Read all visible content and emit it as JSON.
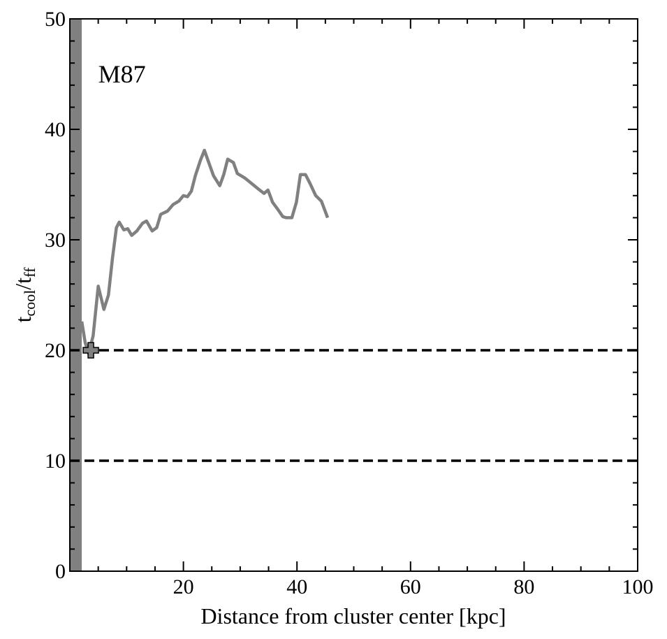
{
  "chart_data": {
    "type": "line",
    "annotation": "M87",
    "annotation_at": [
      5,
      45
    ],
    "xlabel": "Distance from cluster center [kpc]",
    "ylabel_parts": [
      "t",
      "cool",
      "/t",
      "ff"
    ],
    "xlim": [
      0,
      100
    ],
    "ylim": [
      0,
      50
    ],
    "xticks": [
      20,
      40,
      60,
      80,
      100
    ],
    "yticks": [
      0,
      10,
      20,
      30,
      40,
      50
    ],
    "xminorticks": [
      5,
      10,
      15,
      25,
      30,
      35,
      45,
      50,
      55,
      65,
      70,
      75,
      85,
      90,
      95
    ],
    "yminorticks": [
      2,
      4,
      6,
      8,
      12,
      14,
      16,
      18,
      22,
      24,
      26,
      28,
      32,
      34,
      36,
      38,
      42,
      44,
      46,
      48
    ],
    "hlines": [
      20,
      10
    ],
    "shade_x": [
      0,
      2.1
    ],
    "shade_color": "#808080",
    "marker": {
      "x": 3.7,
      "y": 20
    },
    "series": [
      {
        "color": "#808080",
        "x": [
          2.1,
          2.7,
          3.3,
          4.1,
          5.0,
          6.0,
          6.8,
          7.5,
          8.2,
          8.7,
          9.5,
          10.2,
          10.9,
          11.8,
          12.8,
          13.5,
          14.5,
          15.3,
          16.0,
          17.2,
          18.2,
          19.2,
          20.0,
          20.7,
          21.4,
          22.1,
          23.0,
          23.7,
          24.6,
          25.3,
          26.4,
          27.1,
          27.8,
          28.8,
          29.5,
          30.8,
          32.0,
          33.2,
          34.2,
          34.9,
          35.7,
          36.7,
          37.5,
          38.1,
          39.1,
          39.9,
          40.6,
          41.5,
          42.3,
          43.3,
          44.3,
          45.4
        ],
        "values": [
          22.6,
          20.7,
          19.7,
          21.3,
          25.8,
          23.7,
          25.0,
          28.3,
          31.1,
          31.6,
          30.9,
          31.0,
          30.4,
          30.8,
          31.5,
          31.7,
          30.8,
          31.1,
          32.3,
          32.6,
          33.2,
          33.5,
          34.0,
          33.9,
          34.4,
          35.8,
          37.2,
          38.1,
          36.8,
          35.8,
          34.9,
          35.9,
          37.3,
          37.0,
          36.0,
          35.6,
          35.1,
          34.6,
          34.2,
          34.5,
          33.4,
          32.7,
          32.1,
          32.0,
          32.0,
          33.4,
          35.9,
          35.9,
          35.1,
          34.0,
          33.5,
          32.0
        ]
      }
    ]
  }
}
